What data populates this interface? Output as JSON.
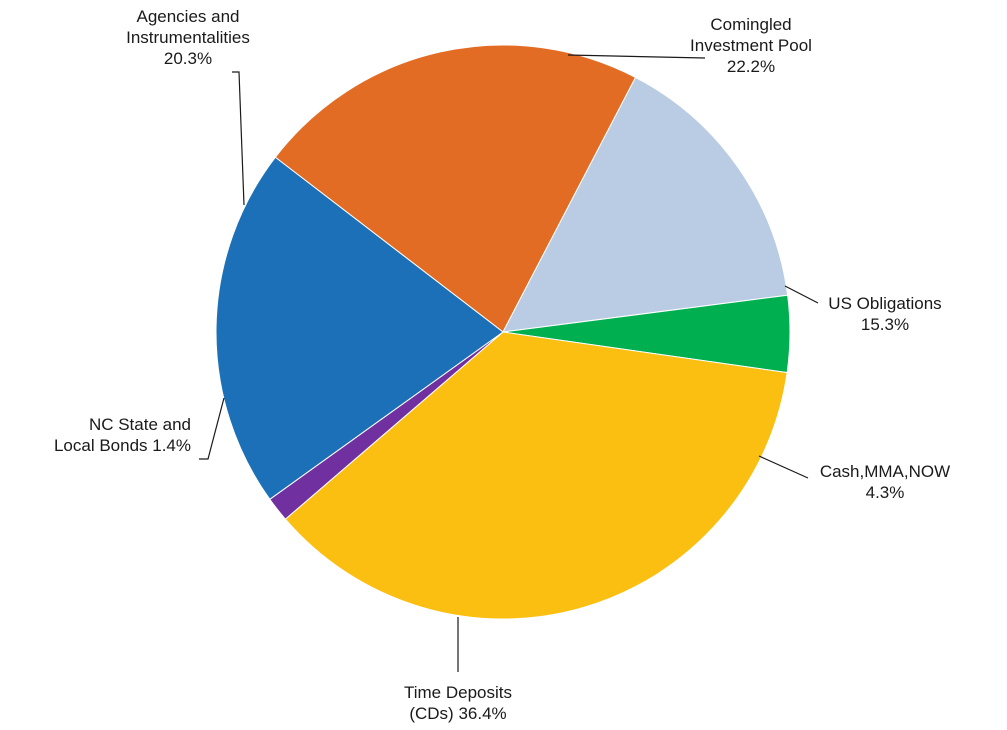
{
  "chart_data": {
    "type": "pie",
    "title": "",
    "slices": [
      {
        "name": "Comingled Investment Pool",
        "label_lines": [
          "Comingled",
          "Investment Pool",
          "22.2%"
        ],
        "value": 22.2,
        "color": "#e36c24"
      },
      {
        "name": "US Obligations",
        "label_lines": [
          "US Obligations",
          "15.3%"
        ],
        "value": 15.3,
        "color": "#b9cce4"
      },
      {
        "name": "Cash,MMA,NOW",
        "label_lines": [
          "Cash,MMA,NOW",
          "4.3%"
        ],
        "value": 4.3,
        "color": "#00b050"
      },
      {
        "name": "Time Deposits (CDs)",
        "label_lines": [
          "Time Deposits",
          "(CDs) 36.4%"
        ],
        "value": 36.4,
        "color": "#fbbf12"
      },
      {
        "name": "NC State and Local Bonds",
        "label_lines": [
          "NC State and",
          "Local Bonds 1.4%"
        ],
        "value": 1.4,
        "color": "#7030a0"
      },
      {
        "name": "Agencies and Instrumentalities",
        "label_lines": [
          "Agencies and",
          "Instrumentalities",
          "20.3%"
        ],
        "value": 20.3,
        "color": "#1b70b8"
      }
    ]
  }
}
